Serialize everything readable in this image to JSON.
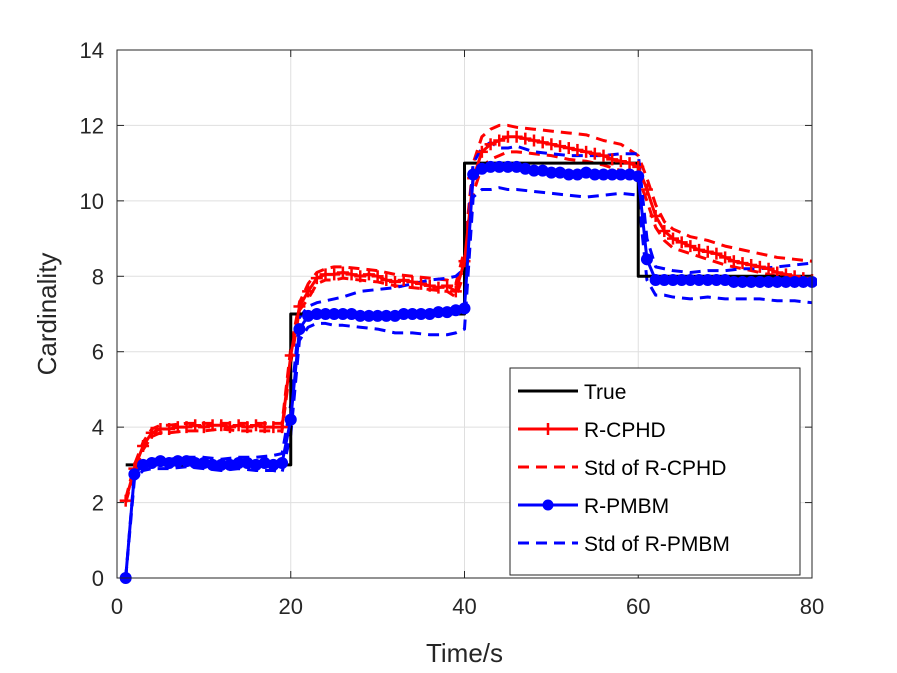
{
  "chart_data": {
    "type": "line",
    "title": "",
    "xlabel": "Time/s",
    "ylabel": "Cardinality",
    "xlim": [
      0,
      80
    ],
    "ylim": [
      0,
      14
    ],
    "xticks": [
      0,
      20,
      40,
      60,
      80
    ],
    "yticks": [
      0,
      2,
      4,
      6,
      8,
      10,
      12,
      14
    ],
    "xtick_labels": [
      "0",
      "20",
      "40",
      "60",
      "80"
    ],
    "ytick_labels": [
      "0",
      "2",
      "4",
      "6",
      "8",
      "10",
      "12",
      "14"
    ],
    "grid": true,
    "legend_position": "bottom-right",
    "series": [
      {
        "name": "True",
        "color": "#000000",
        "style": "solid",
        "marker": "none",
        "x": [
          1,
          20,
          20,
          40,
          40,
          60,
          60,
          80
        ],
        "y": [
          3,
          3,
          7,
          7,
          11,
          11,
          8,
          8
        ]
      },
      {
        "name": "R-CPHD",
        "color": "#ff0000",
        "style": "solid",
        "marker": "plus",
        "x": [
          1,
          2,
          3,
          4,
          5,
          6,
          7,
          8,
          9,
          10,
          11,
          12,
          13,
          14,
          15,
          16,
          17,
          18,
          19,
          20,
          21,
          22,
          23,
          24,
          25,
          26,
          27,
          28,
          29,
          30,
          31,
          32,
          33,
          34,
          35,
          36,
          37,
          38,
          39,
          40,
          41,
          42,
          43,
          44,
          45,
          46,
          47,
          48,
          49,
          50,
          51,
          52,
          53,
          54,
          55,
          56,
          57,
          58,
          59,
          60,
          61,
          62,
          63,
          64,
          65,
          66,
          67,
          68,
          69,
          70,
          71,
          72,
          73,
          74,
          75,
          76,
          77,
          78,
          79,
          80
        ],
        "y": [
          2.05,
          2.9,
          3.5,
          3.85,
          3.95,
          3.95,
          4.0,
          4.0,
          4.05,
          4.0,
          4.05,
          4.05,
          4.0,
          4.05,
          4.0,
          4.05,
          4.0,
          4.0,
          4.0,
          5.9,
          7.2,
          7.6,
          7.95,
          8.05,
          8.05,
          8.1,
          8.05,
          8.0,
          8.05,
          8.0,
          7.9,
          7.85,
          7.9,
          7.85,
          7.8,
          7.75,
          7.7,
          7.75,
          7.6,
          8.4,
          10.6,
          11.3,
          11.5,
          11.6,
          11.7,
          11.7,
          11.65,
          11.6,
          11.55,
          11.5,
          11.45,
          11.4,
          11.35,
          11.3,
          11.25,
          11.2,
          11.1,
          11.05,
          11.0,
          10.9,
          10.3,
          9.6,
          9.2,
          9.0,
          8.9,
          8.8,
          8.7,
          8.65,
          8.6,
          8.5,
          8.4,
          8.35,
          8.3,
          8.25,
          8.2,
          8.1,
          8.05,
          8.0,
          7.95,
          7.9
        ]
      },
      {
        "name": "Std of R-CPHD",
        "color": "#ff0000",
        "style": "dashed",
        "marker": "none",
        "upper_x": [
          1,
          2,
          3,
          4,
          5,
          6,
          8,
          10,
          12,
          14,
          16,
          18,
          19,
          20,
          21,
          22,
          23,
          24,
          25,
          26,
          28,
          30,
          32,
          34,
          36,
          38,
          39,
          40,
          41,
          42,
          43,
          44,
          45,
          46,
          48,
          50,
          52,
          54,
          56,
          58,
          60,
          61,
          62,
          63,
          64,
          66,
          68,
          70,
          72,
          74,
          76,
          78,
          80
        ],
        "upper_y": [
          2.1,
          3.0,
          3.6,
          3.95,
          4.05,
          4.05,
          4.1,
          4.1,
          4.1,
          4.1,
          4.1,
          4.1,
          4.1,
          6.1,
          7.3,
          7.8,
          8.1,
          8.2,
          8.25,
          8.25,
          8.2,
          8.15,
          8.05,
          8.0,
          7.95,
          7.9,
          7.8,
          8.7,
          11.0,
          11.7,
          11.9,
          12.0,
          12.0,
          11.95,
          11.9,
          11.85,
          11.8,
          11.75,
          11.6,
          11.5,
          11.2,
          10.6,
          9.9,
          9.45,
          9.25,
          9.05,
          8.95,
          8.8,
          8.7,
          8.6,
          8.5,
          8.45,
          8.4
        ],
        "lower_x": [
          1,
          2,
          3,
          4,
          5,
          6,
          8,
          10,
          12,
          14,
          16,
          18,
          19,
          20,
          21,
          22,
          23,
          24,
          25,
          26,
          28,
          30,
          32,
          34,
          36,
          38,
          39,
          40,
          41,
          42,
          43,
          44,
          45,
          46,
          48,
          50,
          52,
          54,
          56,
          58,
          60,
          61,
          62,
          63,
          64,
          66,
          68,
          70,
          72,
          74,
          76,
          78,
          80
        ],
        "lower_y": [
          2.0,
          2.8,
          3.4,
          3.75,
          3.85,
          3.85,
          3.9,
          3.9,
          3.95,
          3.9,
          3.9,
          3.9,
          3.9,
          5.7,
          7.1,
          7.4,
          7.8,
          7.9,
          7.9,
          7.95,
          7.9,
          7.85,
          7.75,
          7.7,
          7.65,
          7.6,
          7.45,
          8.1,
          10.2,
          10.9,
          11.1,
          11.2,
          11.3,
          11.3,
          11.25,
          11.2,
          11.1,
          11.05,
          10.95,
          10.8,
          10.6,
          10.0,
          9.3,
          8.95,
          8.75,
          8.6,
          8.45,
          8.3,
          8.2,
          8.1,
          8.0,
          7.95,
          7.9
        ]
      },
      {
        "name": "R-PMBM",
        "color": "#0000ff",
        "style": "solid",
        "marker": "circle",
        "x": [
          1,
          2,
          3,
          4,
          5,
          6,
          7,
          8,
          9,
          10,
          11,
          12,
          13,
          14,
          15,
          16,
          17,
          18,
          19,
          20,
          21,
          22,
          23,
          24,
          25,
          26,
          27,
          28,
          29,
          30,
          31,
          32,
          33,
          34,
          35,
          36,
          37,
          38,
          39,
          40,
          41,
          42,
          43,
          44,
          45,
          46,
          47,
          48,
          49,
          50,
          51,
          52,
          53,
          54,
          55,
          56,
          57,
          58,
          59,
          60,
          61,
          62,
          63,
          64,
          65,
          66,
          67,
          68,
          69,
          70,
          71,
          72,
          73,
          74,
          75,
          76,
          77,
          78,
          79,
          80
        ],
        "y": [
          0.0,
          2.75,
          3.0,
          3.05,
          3.1,
          3.05,
          3.1,
          3.1,
          3.05,
          3.05,
          3.0,
          3.0,
          3.0,
          3.05,
          3.05,
          3.0,
          3.05,
          3.0,
          3.05,
          4.2,
          6.6,
          6.95,
          7.0,
          7.0,
          7.0,
          7.0,
          7.0,
          6.95,
          6.95,
          6.95,
          6.95,
          6.95,
          7.0,
          7.0,
          7.0,
          7.0,
          7.05,
          7.05,
          7.1,
          7.15,
          10.7,
          10.85,
          10.9,
          10.9,
          10.9,
          10.9,
          10.85,
          10.8,
          10.8,
          10.75,
          10.75,
          10.7,
          10.7,
          10.75,
          10.7,
          10.7,
          10.7,
          10.7,
          10.7,
          10.65,
          8.45,
          7.9,
          7.9,
          7.9,
          7.9,
          7.9,
          7.9,
          7.9,
          7.9,
          7.9,
          7.85,
          7.85,
          7.85,
          7.85,
          7.85,
          7.85,
          7.85,
          7.85,
          7.85,
          7.85
        ]
      },
      {
        "name": "Std of R-PMBM",
        "color": "#0000ff",
        "style": "dashed",
        "marker": "none",
        "upper_x": [
          1,
          2,
          3,
          4,
          5,
          6,
          8,
          10,
          12,
          14,
          16,
          18,
          19,
          20,
          21,
          22,
          23,
          24,
          25,
          26,
          28,
          30,
          32,
          34,
          36,
          38,
          39,
          40,
          41,
          42,
          43,
          44,
          45,
          46,
          48,
          50,
          52,
          54,
          56,
          58,
          60,
          61,
          62,
          63,
          64,
          66,
          68,
          70,
          72,
          74,
          76,
          78,
          80
        ],
        "upper_y": [
          0.0,
          2.8,
          3.1,
          3.15,
          3.15,
          3.15,
          3.2,
          3.2,
          3.15,
          3.2,
          3.2,
          3.25,
          3.3,
          4.6,
          6.9,
          7.2,
          7.3,
          7.35,
          7.4,
          7.45,
          7.6,
          7.65,
          7.7,
          7.8,
          7.9,
          7.95,
          8.0,
          8.2,
          11.0,
          11.4,
          11.55,
          11.4,
          11.4,
          11.45,
          11.3,
          11.25,
          11.2,
          11.2,
          11.2,
          11.25,
          11.25,
          9.0,
          8.25,
          8.2,
          8.15,
          8.1,
          8.15,
          8.15,
          8.2,
          8.2,
          8.25,
          8.3,
          8.35
        ],
        "lower_x": [
          1,
          2,
          3,
          4,
          5,
          6,
          8,
          10,
          12,
          14,
          16,
          18,
          19,
          20,
          21,
          22,
          23,
          24,
          25,
          26,
          28,
          30,
          32,
          34,
          36,
          38,
          39,
          40,
          41,
          42,
          43,
          44,
          45,
          46,
          48,
          50,
          52,
          54,
          56,
          58,
          60,
          61,
          62,
          63,
          64,
          66,
          68,
          70,
          72,
          74,
          76,
          78,
          80
        ],
        "lower_y": [
          0.0,
          2.6,
          2.85,
          2.9,
          2.9,
          2.9,
          2.95,
          2.9,
          2.85,
          2.9,
          2.85,
          2.85,
          2.8,
          3.8,
          6.3,
          6.65,
          6.75,
          6.75,
          6.7,
          6.7,
          6.65,
          6.6,
          6.5,
          6.5,
          6.45,
          6.45,
          6.5,
          6.6,
          10.1,
          10.3,
          10.3,
          10.35,
          10.3,
          10.3,
          10.25,
          10.2,
          10.15,
          10.1,
          10.15,
          10.2,
          10.15,
          7.9,
          7.5,
          7.5,
          7.45,
          7.4,
          7.45,
          7.4,
          7.4,
          7.4,
          7.35,
          7.35,
          7.3
        ]
      }
    ]
  }
}
